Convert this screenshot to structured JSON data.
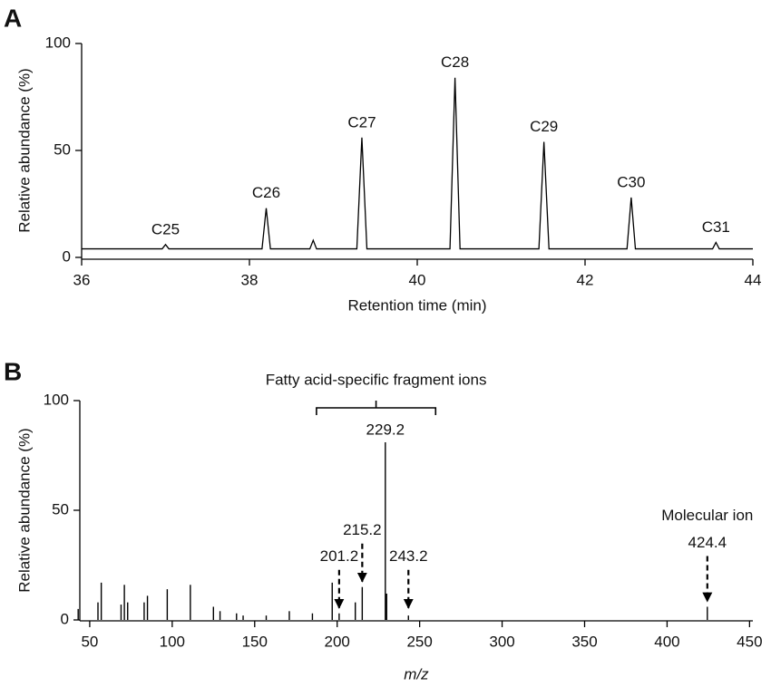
{
  "chart_data": [
    {
      "type": "line",
      "panel": "A",
      "xlabel": "Retention time (min)",
      "ylabel": "Relative abundance (%)",
      "x": [
        36,
        36.96,
        37.0,
        37.04,
        38.15,
        38.2,
        38.25,
        38.72,
        38.76,
        38.8,
        39.28,
        39.34,
        39.4,
        40.39,
        40.45,
        40.51,
        41.45,
        41.51,
        41.57,
        42.5,
        42.55,
        42.6,
        43.52,
        43.56,
        43.6,
        44
      ],
      "values": [
        4,
        4,
        6,
        4,
        4,
        23,
        4,
        4,
        8,
        4,
        4,
        56,
        4,
        4,
        84,
        4,
        4,
        54,
        4,
        4,
        28,
        4,
        4,
        7,
        4,
        4
      ],
      "color": "#000000",
      "xlim": [
        36,
        44
      ],
      "xticks": [
        36,
        38,
        40,
        42,
        44
      ],
      "ylim": [
        0,
        100
      ],
      "yticks": [
        0,
        50,
        100
      ],
      "annotations": [
        {
          "text": "C25",
          "x": 37.0,
          "y": 6
        },
        {
          "text": "C26",
          "x": 38.2,
          "y": 23
        },
        {
          "text": "C27",
          "x": 39.34,
          "y": 56
        },
        {
          "text": "C28",
          "x": 40.45,
          "y": 84
        },
        {
          "text": "C29",
          "x": 41.51,
          "y": 54
        },
        {
          "text": "C30",
          "x": 42.55,
          "y": 28
        },
        {
          "text": "C31",
          "x": 43.56,
          "y": 7
        }
      ]
    },
    {
      "type": "stick",
      "panel": "B",
      "xlabel": "m/z",
      "ylabel": "Relative abundance (%)",
      "x": [
        43,
        55,
        57,
        69,
        71,
        73,
        83,
        85,
        97,
        111,
        125,
        129,
        139,
        143,
        157,
        171,
        185,
        197,
        201.2,
        211,
        215.2,
        229.2,
        230,
        243.2,
        424.4
      ],
      "values": [
        5,
        8,
        17,
        7,
        16,
        8,
        8,
        11,
        14,
        16,
        6,
        4,
        3,
        2,
        2,
        4,
        3,
        17,
        3,
        8,
        15,
        81,
        12,
        2,
        6
      ],
      "color": "#000000",
      "xlim": [
        44,
        452
      ],
      "xticks": [
        50,
        100,
        150,
        200,
        250,
        300,
        350,
        400,
        450
      ],
      "ylim": [
        0,
        100
      ],
      "yticks": [
        0,
        50,
        100
      ],
      "bracket_label": "Fatty acid-specific fragment ions",
      "annotations": [
        {
          "x": 229.2,
          "y": 81
        },
        {
          "x": 215.2,
          "y": 15,
          "arrow": true
        },
        {
          "x": 201.2,
          "y": 3,
          "arrow": true
        },
        {
          "x": 243.2,
          "y": 2,
          "arrow": true
        },
        {
          "x": 424.4,
          "y": 6,
          "arrow": true,
          "note": "Molecular ion"
        }
      ]
    }
  ]
}
